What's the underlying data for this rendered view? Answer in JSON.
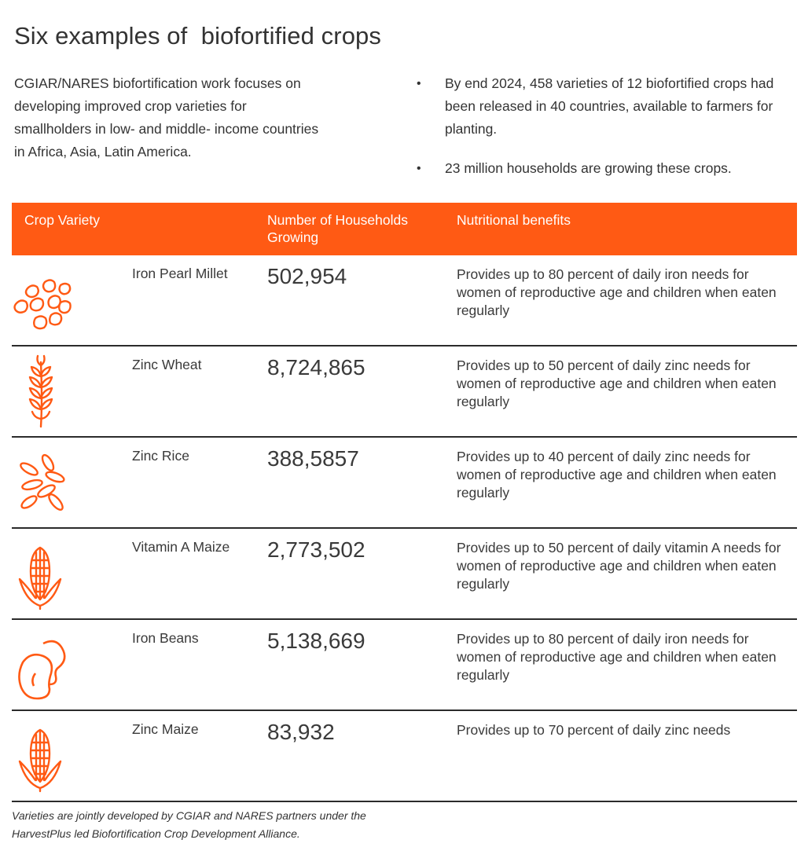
{
  "title": "Six examples of  biofortified crops",
  "intro": "CGIAR/NARES biofortification work focuses on developing improved crop varieties for smallholders in low- and middle- income countries in Africa, Asia, Latin America.",
  "bullets": [
    "By end 2024, 458 varieties of 12 biofortified crops had been released in 40 countries, available to farmers for planting.",
    "23 million households are growing these crops."
  ],
  "table": {
    "headers": {
      "crop": "Crop Variety",
      "households": "Number of Households Growing",
      "benefits": "Nutritional benefits"
    },
    "rows": [
      {
        "icon": "millet-grains-icon",
        "crop": "Iron Pearl Millet",
        "households": "502,954",
        "benefit": "Provides up to 80 percent of daily iron needs for women of reproductive age and children when eaten regularly"
      },
      {
        "icon": "wheat-icon",
        "crop": "Zinc Wheat",
        "households": "8,724,865",
        "benefit": "Provides up to 50 percent of daily zinc needs for women of reproductive age and children when eaten regularly"
      },
      {
        "icon": "rice-grains-icon",
        "crop": "Zinc Rice",
        "households": "388,5857",
        "benefit": "Provides up to 40 percent of daily zinc needs for women of reproductive age and children when eaten regularly"
      },
      {
        "icon": "maize-cob-icon",
        "crop": "Vitamin A Maize",
        "households": "2,773,502",
        "benefit": "Provides up to 50 percent of daily vitamin A needs for women of reproductive age and children when eaten regularly"
      },
      {
        "icon": "beans-icon",
        "crop": "Iron Beans",
        "households": "5,138,669",
        "benefit": "Provides up to 80 percent of daily iron needs for women of reproductive age and children when eaten regularly"
      },
      {
        "icon": "maize-cob-icon",
        "crop": "Zinc Maize",
        "households": "83,932",
        "benefit": "Provides up to 70 percent of daily zinc needs"
      }
    ]
  },
  "footnote": "Varieties are jointly developed by CGIAR and NARES partners under the HarvestPlus led Biofortification Crop Development Alliance.",
  "colors": {
    "accent": "#ff5a14",
    "text": "#333333",
    "rule": "#2b2b2b"
  }
}
